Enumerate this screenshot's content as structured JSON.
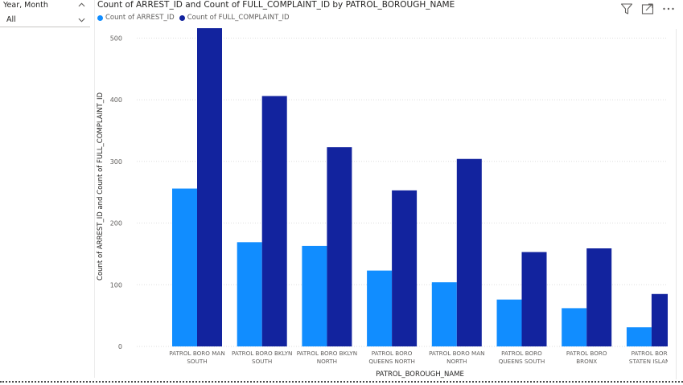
{
  "slicer": {
    "label": "Year, Month",
    "value": "All"
  },
  "visual": {
    "title": "Count of ARREST_ID and Count of FULL_COMPLAINT_ID by PATROL_BOROUGH_NAME",
    "icons": [
      "filter-icon",
      "focus-mode-icon",
      "more-options-icon"
    ]
  },
  "chart_data": {
    "type": "bar",
    "title": "Count of ARREST_ID and Count of FULL_COMPLAINT_ID by PATROL_BOROUGH_NAME",
    "xlabel": "PATROL_BOROUGH_NAME",
    "ylabel": "Count of ARREST_ID and Count of FULL_COMPLAINT_ID",
    "ylim": [
      0,
      520
    ],
    "yticks": [
      0,
      100,
      200,
      300,
      400,
      500
    ],
    "grid": true,
    "legend_position": "top-left",
    "categories": [
      [
        "PATROL BORO MAN",
        "SOUTH"
      ],
      [
        "PATROL BORO BKLYN",
        "SOUTH"
      ],
      [
        "PATROL BORO BKLYN",
        "NORTH"
      ],
      [
        "PATROL BORO",
        "QUEENS NORTH"
      ],
      [
        "PATROL BORO MAN",
        "NORTH"
      ],
      [
        "PATROL BORO",
        "QUEENS SOUTH"
      ],
      [
        "PATROL BORO",
        "BRONX"
      ],
      [
        "PATROL BORO",
        "STATEN ISLAND"
      ]
    ],
    "series": [
      {
        "name": "Count of ARREST_ID",
        "color": "#118dff",
        "values": [
          256,
          169,
          163,
          123,
          104,
          76,
          62,
          31
        ]
      },
      {
        "name": "Count of FULL_COMPLAINT_ID",
        "color": "#12239e",
        "values": [
          516,
          406,
          323,
          253,
          304,
          153,
          159,
          85
        ]
      }
    ]
  }
}
